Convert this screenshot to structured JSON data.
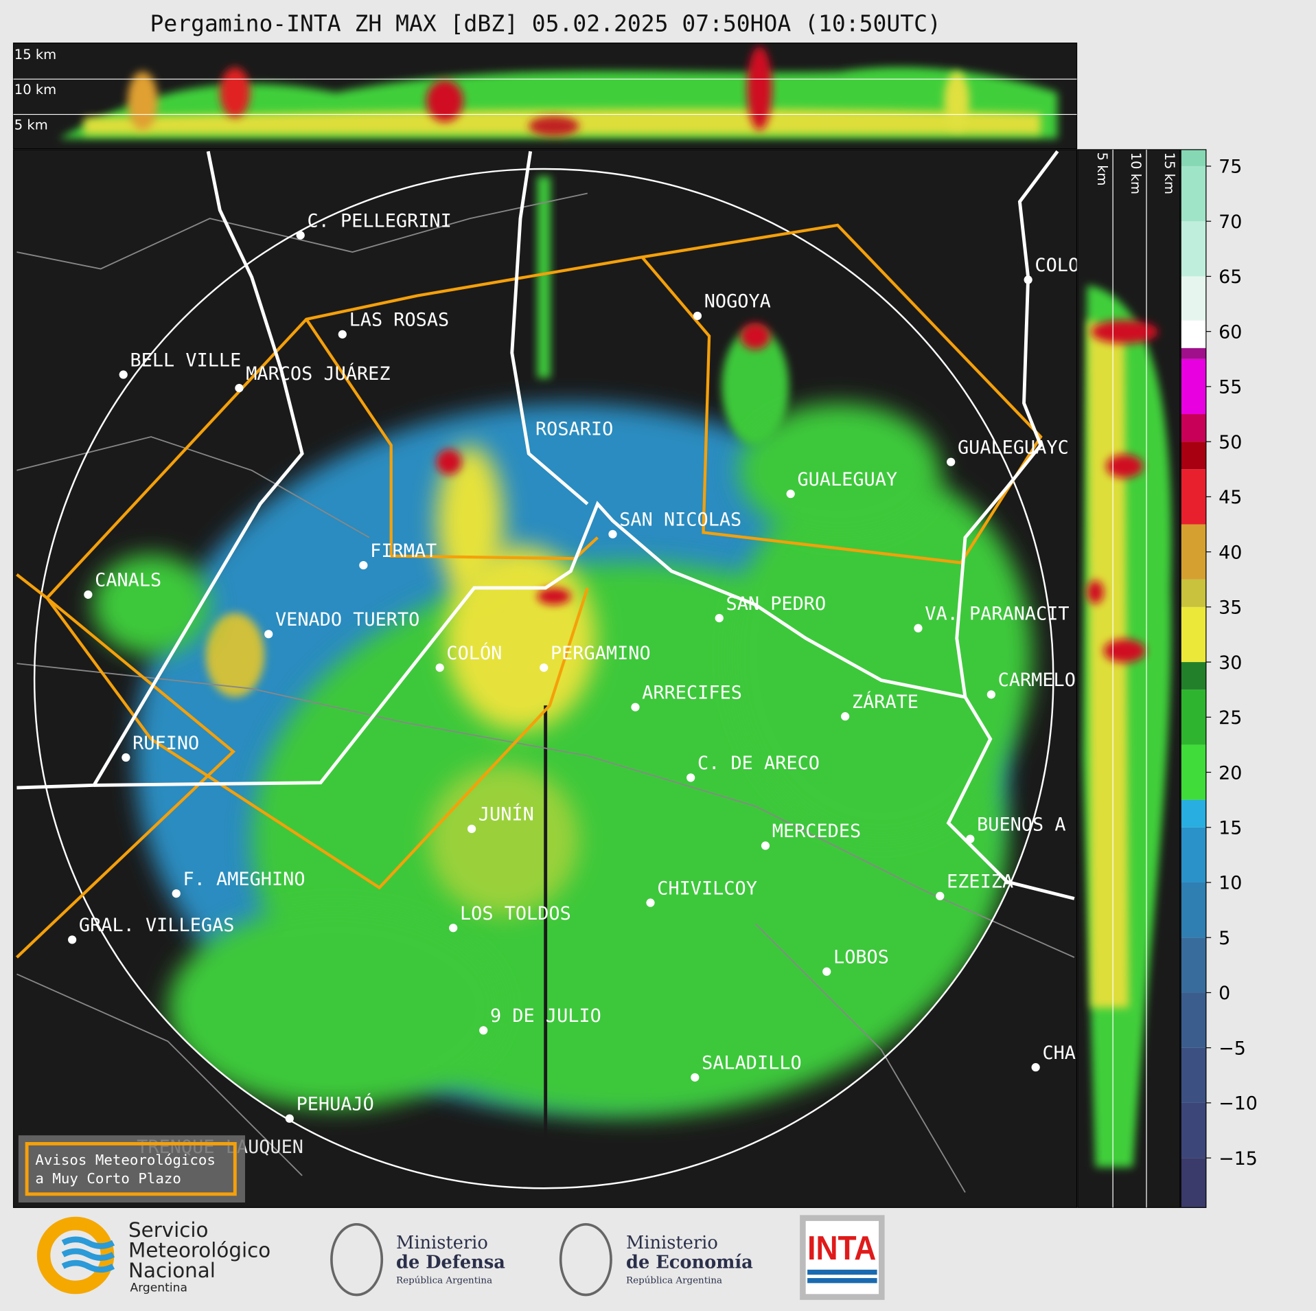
{
  "title": "Pergamino-INTA ZH MAX [dBZ] 05.02.2025 07:50HOA (10:50UTC)",
  "top_panel": {
    "height_labels": [
      "15 km",
      "10 km",
      "5 km"
    ]
  },
  "side_panel": {
    "height_labels": [
      "5 km",
      "10 km",
      "15 km"
    ]
  },
  "colorbar": {
    "lim": [
      -19.5,
      76.5
    ],
    "ticks": [
      75,
      70,
      65,
      60,
      55,
      50,
      45,
      40,
      35,
      30,
      25,
      20,
      15,
      10,
      5,
      0,
      {
        "value": -5,
        "label": "−5"
      },
      {
        "value": -10,
        "label": "−10"
      },
      {
        "value": -15,
        "label": "−15"
      }
    ],
    "bands": [
      {
        "from": -19.5,
        "color": "#3a3b6b"
      },
      {
        "from": -15,
        "color": "#3d4678"
      },
      {
        "from": -10,
        "color": "#3c5182"
      },
      {
        "from": -5,
        "color": "#3b5d8e"
      },
      {
        "from": 0,
        "color": "#386c9c"
      },
      {
        "from": 5,
        "color": "#2f7fb2"
      },
      {
        "from": 10,
        "color": "#2a92c8"
      },
      {
        "from": 15,
        "color": "#28aee0"
      },
      {
        "from": 17.5,
        "color": "#3fdc3a"
      },
      {
        "from": 22.5,
        "color": "#2eb42e"
      },
      {
        "from": 27.5,
        "color": "#23802a"
      },
      {
        "from": 30,
        "color": "#ece83a"
      },
      {
        "from": 35,
        "color": "#c8c23c"
      },
      {
        "from": 37.5,
        "color": "#d6a030"
      },
      {
        "from": 42.5,
        "color": "#e8202e"
      },
      {
        "from": 47.5,
        "color": "#a80010"
      },
      {
        "from": 50,
        "color": "#c80058"
      },
      {
        "from": 52.5,
        "color": "#e800e0"
      },
      {
        "from": 57.5,
        "color": "#a0108a"
      },
      {
        "from": 58.5,
        "color": "#ffffff"
      },
      {
        "from": 61,
        "color": "#e6f6ee"
      },
      {
        "from": 65,
        "color": "#c0eedc"
      },
      {
        "from": 70,
        "color": "#a0e4c8"
      },
      {
        "from": 75,
        "color": "#86d8b4"
      }
    ]
  },
  "cities": [
    "C. PELLEGRINI",
    "LAS ROSAS",
    "BELL VILLE",
    "MARCOS JUÁREZ",
    "NOGOYA",
    "ROSARIO",
    "COLO",
    "GUALEGUAYC",
    "GUALEGUAY",
    "SAN NICOLAS",
    "FIRMAT",
    "CANALS",
    "SAN PEDRO",
    "VENADO TUERTO",
    "VA. PARANACIT",
    "COLÓN",
    "PERGAMINO",
    "CARMELO",
    "ARRECIFES",
    "ZÁRATE",
    "RUFINO",
    "C. DE ARECO",
    "JUNÍN",
    "BUENOS A",
    "MERCEDES",
    "F. AMEGHINO",
    "EZEIZA",
    "CHIVILCOY",
    "LOS TOLDOS",
    "GRAL. VILLEGAS",
    "LOBOS",
    "9 DE JULIO",
    "CHA",
    "SALADILLO",
    "PEHUAJÓ",
    "TRENQUE LAUQUEN"
  ],
  "legend_box": [
    "Avisos Meteorológicos",
    "a Muy Corto Plazo"
  ],
  "logos": {
    "smn": [
      "Servicio",
      "Meteorológico",
      "Nacional",
      "Argentina"
    ],
    "defensa": [
      "Ministerio",
      "de Defensa",
      "República Argentina"
    ],
    "economia": [
      "Ministerio",
      "de Economía",
      "República Argentina"
    ],
    "inta": "INTA"
  }
}
